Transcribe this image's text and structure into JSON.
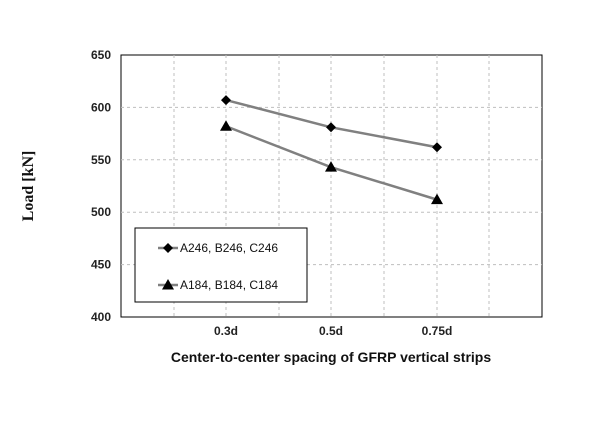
{
  "chart_data": {
    "type": "line",
    "title": "",
    "xlabel": "Center-to-center spacing of GFRP vertical strips",
    "ylabel": "Load [kN]",
    "categories": [
      "0.3d",
      "0.5d",
      "0.75d"
    ],
    "ylim": [
      400,
      650
    ],
    "yticks": [
      400,
      450,
      500,
      550,
      600,
      650
    ],
    "grid": true,
    "legend_position": "bottom-left",
    "series": [
      {
        "name": "A246, B246, C246",
        "marker": "diamond",
        "values": [
          607,
          581,
          562
        ],
        "color": "#808080"
      },
      {
        "name": "A184, B184, C184",
        "marker": "triangle",
        "values": [
          582,
          543,
          512
        ],
        "color": "#808080"
      }
    ]
  }
}
